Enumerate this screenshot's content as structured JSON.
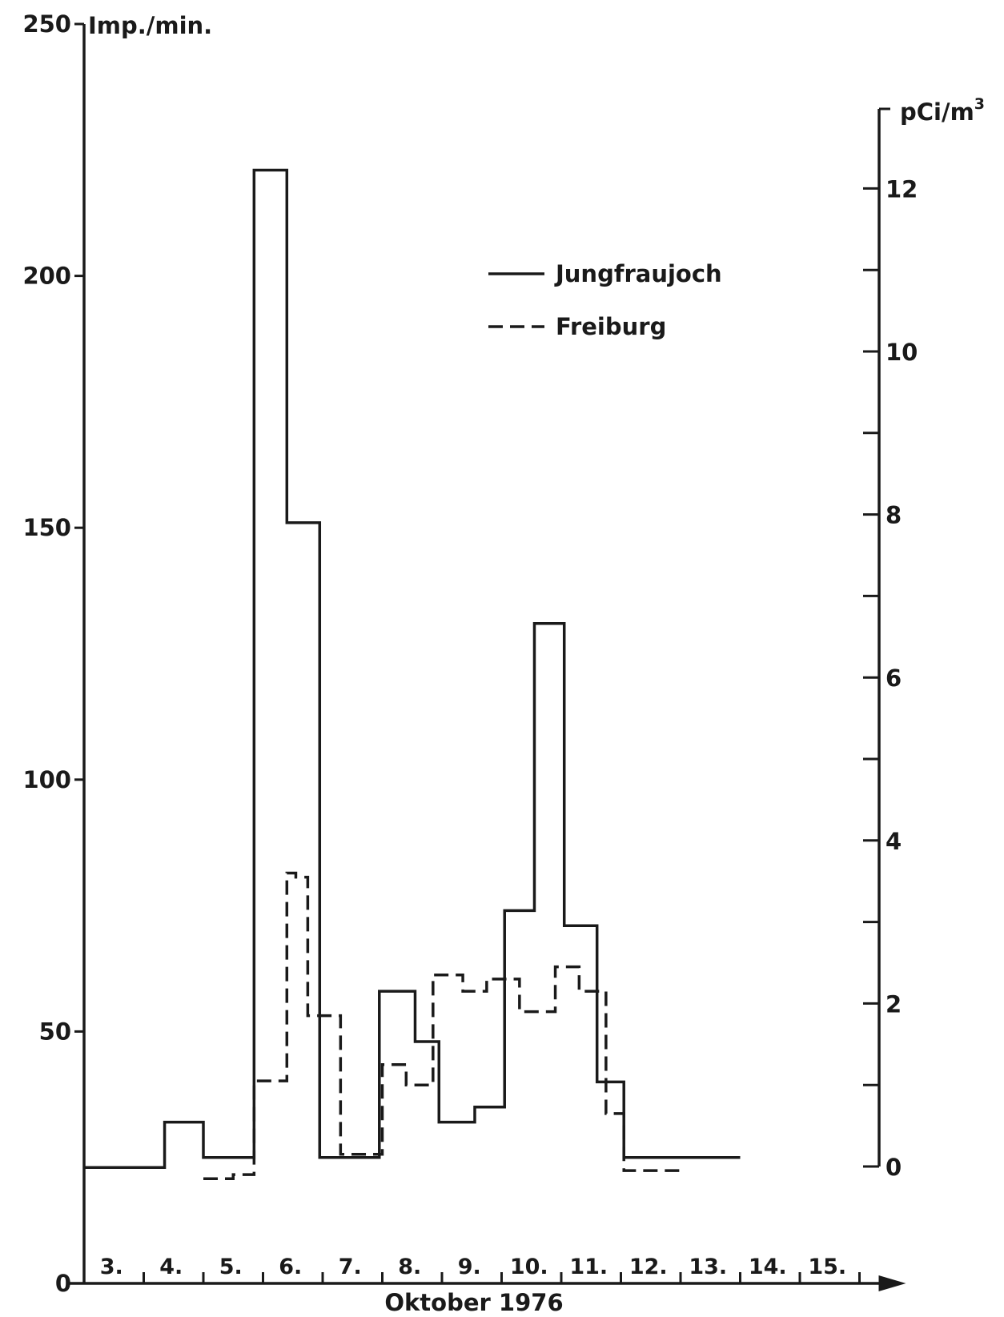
{
  "chart_data": {
    "type": "line",
    "step": true,
    "xlabel": "Oktober 1976",
    "x_tick_labels": [
      "3.",
      "4.",
      "5.",
      "6.",
      "7.",
      "8.",
      "9.",
      "10.",
      "11.",
      "12.",
      "13.",
      "14.",
      "15."
    ],
    "y_left": {
      "label": "Imp./min.",
      "range": [
        0,
        250
      ],
      "tick_labels": [
        "0",
        "50",
        "100",
        "150",
        "200",
        "250"
      ]
    },
    "y_right": {
      "label": "pCi/m",
      "label_sup": "3",
      "range": [
        0,
        13
      ],
      "tick_labels": [
        "0",
        "2",
        "4",
        "6",
        "8",
        "10",
        "12"
      ]
    },
    "legend": {
      "position": "top-right",
      "items": [
        {
          "label": "Jungfraujoch",
          "style": "solid"
        },
        {
          "label": "Freiburg",
          "style": "dashed"
        }
      ]
    },
    "series": [
      {
        "name": "Jungfraujoch",
        "axis": "left",
        "style": "solid",
        "color": "#1a1a1a",
        "steps": [
          {
            "x0": 3.0,
            "x1": 4.35,
            "y": 23
          },
          {
            "x0": 4.35,
            "x1": 5.0,
            "y": 32
          },
          {
            "x0": 5.0,
            "x1": 5.85,
            "y": 25
          },
          {
            "x0": 5.85,
            "x1": 6.4,
            "y": 221
          },
          {
            "x0": 6.4,
            "x1": 6.95,
            "y": 151
          },
          {
            "x0": 6.95,
            "x1": 7.95,
            "y": 25
          },
          {
            "x0": 7.95,
            "x1": 8.55,
            "y": 58
          },
          {
            "x0": 8.55,
            "x1": 8.95,
            "y": 48
          },
          {
            "x0": 8.95,
            "x1": 9.55,
            "y": 32
          },
          {
            "x0": 9.55,
            "x1": 10.05,
            "y": 35
          },
          {
            "x0": 10.05,
            "x1": 10.55,
            "y": 74
          },
          {
            "x0": 10.55,
            "x1": 11.05,
            "y": 131
          },
          {
            "x0": 11.05,
            "x1": 11.6,
            "y": 71
          },
          {
            "x0": 11.6,
            "x1": 12.05,
            "y": 40
          },
          {
            "x0": 12.05,
            "x1": 14.0,
            "y": 25
          }
        ]
      },
      {
        "name": "Freiburg",
        "axis": "right",
        "style": "dashed",
        "color": "#1a1a1a",
        "steps": [
          {
            "x0": 5.0,
            "x1": 5.5,
            "y": -0.15
          },
          {
            "x0": 5.5,
            "x1": 5.85,
            "y": -0.1
          },
          {
            "x0": 5.85,
            "x1": 6.4,
            "y": 1.05
          },
          {
            "x0": 6.4,
            "x1": 6.55,
            "y": 3.6
          },
          {
            "x0": 6.55,
            "x1": 6.75,
            "y": 3.55
          },
          {
            "x0": 6.75,
            "x1": 7.3,
            "y": 1.85
          },
          {
            "x0": 7.3,
            "x1": 7.5,
            "y": 0.15
          },
          {
            "x0": 7.5,
            "x1": 8.0,
            "y": 0.15
          },
          {
            "x0": 8.0,
            "x1": 8.4,
            "y": 1.25
          },
          {
            "x0": 8.4,
            "x1": 8.85,
            "y": 1.0
          },
          {
            "x0": 8.85,
            "x1": 9.35,
            "y": 2.35
          },
          {
            "x0": 9.35,
            "x1": 9.75,
            "y": 2.15
          },
          {
            "x0": 9.75,
            "x1": 10.3,
            "y": 2.3
          },
          {
            "x0": 10.3,
            "x1": 10.9,
            "y": 1.9
          },
          {
            "x0": 10.9,
            "x1": 11.3,
            "y": 2.45
          },
          {
            "x0": 11.3,
            "x1": 11.75,
            "y": 2.15
          },
          {
            "x0": 11.75,
            "x1": 12.05,
            "y": 0.65
          },
          {
            "x0": 12.05,
            "x1": 13.0,
            "y": -0.05
          }
        ]
      }
    ]
  }
}
